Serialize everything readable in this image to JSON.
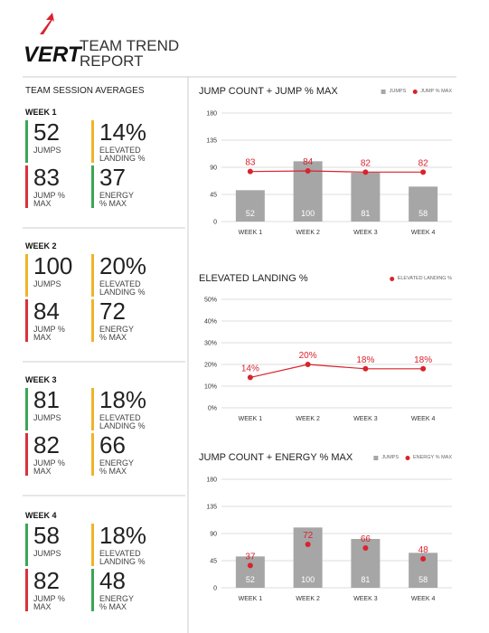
{
  "header": {
    "logo": "VERT",
    "title": "TEAM TREND REPORT"
  },
  "sidebar": {
    "title": "TEAM SESSION AVERAGES",
    "weeks": [
      {
        "label": "WEEK 1",
        "metrics": [
          {
            "value": "52",
            "label": "JUMPS",
            "color": "#3aa655"
          },
          {
            "value": "14%",
            "label": "ELEVATED LANDING %",
            "color": "#f0b429"
          },
          {
            "value": "83",
            "label": "JUMP % MAX",
            "color": "#d9313c"
          },
          {
            "value": "37",
            "label": "ENERGY % MAX",
            "color": "#3aa655"
          }
        ]
      },
      {
        "label": "WEEK 2",
        "metrics": [
          {
            "value": "100",
            "label": "JUMPS",
            "color": "#f0b429"
          },
          {
            "value": "20%",
            "label": "ELEVATED LANDING %",
            "color": "#f0b429"
          },
          {
            "value": "84",
            "label": "JUMP % MAX",
            "color": "#d9313c"
          },
          {
            "value": "72",
            "label": "ENERGY % MAX",
            "color": "#f0b429"
          }
        ]
      },
      {
        "label": "WEEK 3",
        "metrics": [
          {
            "value": "81",
            "label": "JUMPS",
            "color": "#3aa655"
          },
          {
            "value": "18%",
            "label": "ELEVATED LANDING %",
            "color": "#f0b429"
          },
          {
            "value": "82",
            "label": "JUMP % MAX",
            "color": "#d9313c"
          },
          {
            "value": "66",
            "label": "ENERGY % MAX",
            "color": "#f0b429"
          }
        ]
      },
      {
        "label": "WEEK 4",
        "metrics": [
          {
            "value": "58",
            "label": "JUMPS",
            "color": "#3aa655"
          },
          {
            "value": "18%",
            "label": "ELEVATED LANDING %",
            "color": "#f0b429"
          },
          {
            "value": "82",
            "label": "JUMP % MAX",
            "color": "#d9313c"
          },
          {
            "value": "48",
            "label": "ENERGY % MAX",
            "color": "#3aa655"
          }
        ]
      }
    ]
  },
  "chart_data": [
    {
      "type": "bar",
      "title": "JUMP COUNT + JUMP % MAX",
      "categories": [
        "WEEK 1",
        "WEEK 2",
        "WEEK 3",
        "WEEK 4"
      ],
      "series": [
        {
          "name": "JUMPS",
          "mark": "bar",
          "color": "#a6a6a6",
          "values": [
            52,
            100,
            81,
            58
          ]
        },
        {
          "name": "JUMP % MAX",
          "mark": "line",
          "color": "#d9232e",
          "values": [
            83,
            84,
            82,
            82
          ]
        }
      ],
      "ylim": [
        0,
        180
      ],
      "yticks": [
        0,
        45,
        90,
        135,
        180
      ],
      "grid": true
    },
    {
      "type": "line",
      "title": "ELEVATED LANDING %",
      "categories": [
        "WEEK 1",
        "WEEK 2",
        "WEEK 3",
        "WEEK 4"
      ],
      "series": [
        {
          "name": "ELEVATED LANDING %",
          "mark": "line",
          "color": "#d9232e",
          "values": [
            14,
            20,
            18,
            18
          ],
          "value_labels": [
            "14%",
            "20%",
            "18%",
            "18%"
          ]
        }
      ],
      "ylim": [
        0,
        50
      ],
      "yticks": [
        {
          "value": 0,
          "label": "0%"
        },
        {
          "value": 10,
          "label": "10%"
        },
        {
          "value": 20,
          "label": "20%"
        },
        {
          "value": 30,
          "label": "30%"
        },
        {
          "value": 40,
          "label": "40%"
        },
        {
          "value": 50,
          "label": "50%"
        }
      ],
      "grid": true
    },
    {
      "type": "bar",
      "title": "JUMP COUNT + ENERGY % MAX",
      "categories": [
        "WEEK 1",
        "WEEK 2",
        "WEEK 3",
        "WEEK 4"
      ],
      "series": [
        {
          "name": "JUMPS",
          "mark": "bar",
          "color": "#a6a6a6",
          "values": [
            52,
            100,
            81,
            58
          ]
        },
        {
          "name": "ENERGY % MAX",
          "mark": "dot",
          "color": "#d9232e",
          "values": [
            37,
            72,
            66,
            48
          ]
        }
      ],
      "ylim": [
        0,
        180
      ],
      "yticks": [
        0,
        45,
        90,
        135,
        180
      ],
      "grid": true
    }
  ]
}
